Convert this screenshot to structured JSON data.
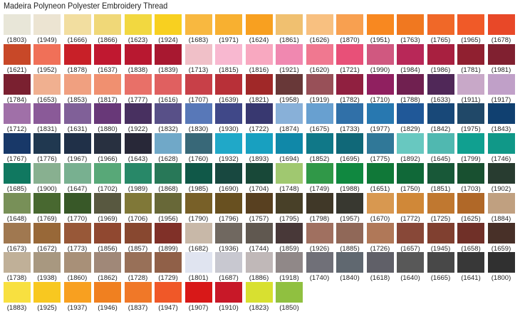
{
  "title": "Madeira Polyneon Polyester Embroidery Thread",
  "rows": [
    [
      {
        "code": "(1803)",
        "color": "#e8e6d8"
      },
      {
        "code": "(1949)",
        "color": "#ece4d2"
      },
      {
        "code": "(1666)",
        "color": "#f2dea0"
      },
      {
        "code": "(1866)",
        "color": "#f0d878"
      },
      {
        "code": "(1623)",
        "color": "#f2d840"
      },
      {
        "code": "(1924)",
        "color": "#f8d020"
      },
      {
        "code": "(1683)",
        "color": "#f8b840"
      },
      {
        "code": "(1971)",
        "color": "#f8b030"
      },
      {
        "code": "(1624)",
        "color": "#f8a020"
      },
      {
        "code": "(1861)",
        "color": "#f0c070"
      },
      {
        "code": "(1626)",
        "color": "#f8c080"
      },
      {
        "code": "(1870)",
        "color": "#f8a050"
      },
      {
        "code": "(1951)",
        "color": "#f88820"
      },
      {
        "code": "(1763)",
        "color": "#f07820"
      },
      {
        "code": "(1765)",
        "color": "#f06828"
      },
      {
        "code": "(1965)",
        "color": "#f05a28"
      },
      {
        "code": "(1678)",
        "color": "#e84828"
      }
    ],
    [
      {
        "code": "(1621)",
        "color": "#c84828"
      },
      {
        "code": "(1952)",
        "color": "#f07058"
      },
      {
        "code": "(1878)",
        "color": "#c82028"
      },
      {
        "code": "(1637)",
        "color": "#c01830"
      },
      {
        "code": "(1838)",
        "color": "#b81830"
      },
      {
        "code": "(1839)",
        "color": "#a81830"
      },
      {
        "code": "(1713)",
        "color": "#f0c0c8"
      },
      {
        "code": "(1815)",
        "color": "#f8b8d0"
      },
      {
        "code": "(1816)",
        "color": "#f8a8c0"
      },
      {
        "code": "(1921)",
        "color": "#f088b0"
      },
      {
        "code": "(1620)",
        "color": "#f07890"
      },
      {
        "code": "(1721)",
        "color": "#e85078"
      },
      {
        "code": "(1990)",
        "color": "#d05880"
      },
      {
        "code": "(1984)",
        "color": "#b82858"
      },
      {
        "code": "(1986)",
        "color": "#a82040"
      },
      {
        "code": "(1781)",
        "color": "#902030"
      },
      {
        "code": "(1981)",
        "color": "#802030"
      }
    ],
    [
      {
        "code": "(1784)",
        "color": "#7a2030"
      },
      {
        "code": "(1653)",
        "color": "#f0b090"
      },
      {
        "code": "(1853)",
        "color": "#f0a080"
      },
      {
        "code": "(1817)",
        "color": "#f09070"
      },
      {
        "code": "(1777)",
        "color": "#e87068"
      },
      {
        "code": "(1616)",
        "color": "#e06060"
      },
      {
        "code": "(1707)",
        "color": "#c84048"
      },
      {
        "code": "(1639)",
        "color": "#b83038"
      },
      {
        "code": "(1821)",
        "color": "#a02828"
      },
      {
        "code": "(1958)",
        "color": "#683838"
      },
      {
        "code": "(1919)",
        "color": "#985058"
      },
      {
        "code": "(1782)",
        "color": "#902040"
      },
      {
        "code": "(1710)",
        "color": "#902060"
      },
      {
        "code": "(1788)",
        "color": "#702050"
      },
      {
        "code": "(1633)",
        "color": "#502858"
      },
      {
        "code": "(1911)",
        "color": "#c8a8c8"
      },
      {
        "code": "(1917)",
        "color": "#c0a0c8"
      }
    ],
    [
      {
        "code": "(1712)",
        "color": "#a070a8"
      },
      {
        "code": "(1831)",
        "color": "#8a5a98"
      },
      {
        "code": "(1631)",
        "color": "#806098"
      },
      {
        "code": "(1880)",
        "color": "#683878"
      },
      {
        "code": "(1922)",
        "color": "#483060"
      },
      {
        "code": "(1832)",
        "color": "#585088"
      },
      {
        "code": "(1830)",
        "color": "#5878b8"
      },
      {
        "code": "(1930)",
        "color": "#404888"
      },
      {
        "code": "(1722)",
        "color": "#383870"
      },
      {
        "code": "(1874)",
        "color": "#88b0d8"
      },
      {
        "code": "(1675)",
        "color": "#68a0d0"
      },
      {
        "code": "(1733)",
        "color": "#3070a8"
      },
      {
        "code": "(1977)",
        "color": "#2878b0"
      },
      {
        "code": "(1829)",
        "color": "#205898"
      },
      {
        "code": "(1842)",
        "color": "#184878"
      },
      {
        "code": "(1975)",
        "color": "#204868"
      },
      {
        "code": "(1843)",
        "color": "#104070"
      }
    ],
    [
      {
        "code": "(1767)",
        "color": "#183868"
      },
      {
        "code": "(1776)",
        "color": "#203850"
      },
      {
        "code": "(1967)",
        "color": "#203048"
      },
      {
        "code": "(1966)",
        "color": "#283040"
      },
      {
        "code": "(1643)",
        "color": "#282838"
      },
      {
        "code": "(1628)",
        "color": "#70a8c8"
      },
      {
        "code": "(1760)",
        "color": "#386878"
      },
      {
        "code": "(1932)",
        "color": "#20a8c8"
      },
      {
        "code": "(1893)",
        "color": "#18a0c0"
      },
      {
        "code": "(1694)",
        "color": "#1088a8"
      },
      {
        "code": "(1852)",
        "color": "#107888"
      },
      {
        "code": "(1695)",
        "color": "#106878"
      },
      {
        "code": "(1775)",
        "color": "#307898"
      },
      {
        "code": "(1892)",
        "color": "#68c8c0"
      },
      {
        "code": "(1645)",
        "color": "#50b8b0"
      },
      {
        "code": "(1799)",
        "color": "#10a090"
      },
      {
        "code": "(1746)",
        "color": "#109888"
      }
    ],
    [
      {
        "code": "(1685)",
        "color": "#107860"
      },
      {
        "code": "(1900)",
        "color": "#88b090"
      },
      {
        "code": "(1647)",
        "color": "#78b090"
      },
      {
        "code": "(1702)",
        "color": "#58a878"
      },
      {
        "code": "(1989)",
        "color": "#288868"
      },
      {
        "code": "(1868)",
        "color": "#287858"
      },
      {
        "code": "(1985)",
        "color": "#105848"
      },
      {
        "code": "(1690)",
        "color": "#184840"
      },
      {
        "code": "(1704)",
        "color": "#184838"
      },
      {
        "code": "(1748)",
        "color": "#a0c870"
      },
      {
        "code": "(1749)",
        "color": "#309848"
      },
      {
        "code": "(1988)",
        "color": "#108840"
      },
      {
        "code": "(1651)",
        "color": "#107838"
      },
      {
        "code": "(1750)",
        "color": "#106838"
      },
      {
        "code": "(1851)",
        "color": "#185838"
      },
      {
        "code": "(1703)",
        "color": "#185030"
      },
      {
        "code": "(1902)",
        "color": "#283c30"
      }
    ],
    [
      {
        "code": "(1648)",
        "color": "#789058"
      },
      {
        "code": "(1769)",
        "color": "#486830"
      },
      {
        "code": "(1770)",
        "color": "#385828"
      },
      {
        "code": "(1969)",
        "color": "#585840"
      },
      {
        "code": "(1706)",
        "color": "#807838"
      },
      {
        "code": "(1956)",
        "color": "#686838"
      },
      {
        "code": "(1790)",
        "color": "#786028"
      },
      {
        "code": "(1796)",
        "color": "#685020"
      },
      {
        "code": "(1757)",
        "color": "#584020"
      },
      {
        "code": "(1795)",
        "color": "#484028"
      },
      {
        "code": "(1798)",
        "color": "#403828"
      },
      {
        "code": "(1957)",
        "color": "#383830"
      },
      {
        "code": "(1670)",
        "color": "#d89850"
      },
      {
        "code": "(1772)",
        "color": "#d08838"
      },
      {
        "code": "(1725)",
        "color": "#c07830"
      },
      {
        "code": "(1625)",
        "color": "#b06828"
      },
      {
        "code": "(1884)",
        "color": "#c0a080"
      }
    ],
    [
      {
        "code": "(1673)",
        "color": "#a07850"
      },
      {
        "code": "(1672)",
        "color": "#986838"
      },
      {
        "code": "(1773)",
        "color": "#985838"
      },
      {
        "code": "(1856)",
        "color": "#904830"
      },
      {
        "code": "(1857)",
        "color": "#884830"
      },
      {
        "code": "(1899)",
        "color": "#803028"
      },
      {
        "code": "(1682)",
        "color": "#c8b8a8"
      },
      {
        "code": "(1936)",
        "color": "#706860"
      },
      {
        "code": "(1744)",
        "color": "#605850"
      },
      {
        "code": "(1859)",
        "color": "#483838"
      },
      {
        "code": "(1926)",
        "color": "#a07060"
      },
      {
        "code": "(1885)",
        "color": "#906858"
      },
      {
        "code": "(1726)",
        "color": "#b07858"
      },
      {
        "code": "(1657)",
        "color": "#884838"
      },
      {
        "code": "(1945)",
        "color": "#804030"
      },
      {
        "code": "(1658)",
        "color": "#703028"
      },
      {
        "code": "(1659)",
        "color": "#483028"
      }
    ],
    [
      {
        "code": "(1738)",
        "color": "#c0b098"
      },
      {
        "code": "(1938)",
        "color": "#a89880"
      },
      {
        "code": "(1860)",
        "color": "#a89078"
      },
      {
        "code": "(1862)",
        "color": "#a08878"
      },
      {
        "code": "(1728)",
        "color": "#987058"
      },
      {
        "code": "(1729)",
        "color": "#906048"
      },
      {
        "code": "(1801)",
        "color": "#e0e4f0"
      },
      {
        "code": "(1687)",
        "color": "#c8c8d0"
      },
      {
        "code": "(1886)",
        "color": "#c0b8b8"
      },
      {
        "code": "(1918)",
        "color": "#908888"
      },
      {
        "code": "(1740)",
        "color": "#707078"
      },
      {
        "code": "(1840)",
        "color": "#606870"
      },
      {
        "code": "(1618)",
        "color": "#606068"
      },
      {
        "code": "(1640)",
        "color": "#585858"
      },
      {
        "code": "(1665)",
        "color": "#484848"
      },
      {
        "code": "(1641)",
        "color": "#383838"
      },
      {
        "code": "(1800)",
        "color": "#303030"
      }
    ],
    [
      {
        "code": "(1883)",
        "color": "#f8e040"
      },
      {
        "code": "(1925)",
        "color": "#f8c820"
      },
      {
        "code": "(1937)",
        "color": "#f8a020"
      },
      {
        "code": "(1946)",
        "color": "#f08020"
      },
      {
        "code": "(1837)",
        "color": "#f07828"
      },
      {
        "code": "(1947)",
        "color": "#f05828"
      },
      {
        "code": "(1907)",
        "color": "#d81818"
      },
      {
        "code": "(1910)",
        "color": "#c81828"
      },
      {
        "code": "(1823)",
        "color": "#d8e030"
      },
      {
        "code": "(1850)",
        "color": "#90c040"
      }
    ]
  ]
}
